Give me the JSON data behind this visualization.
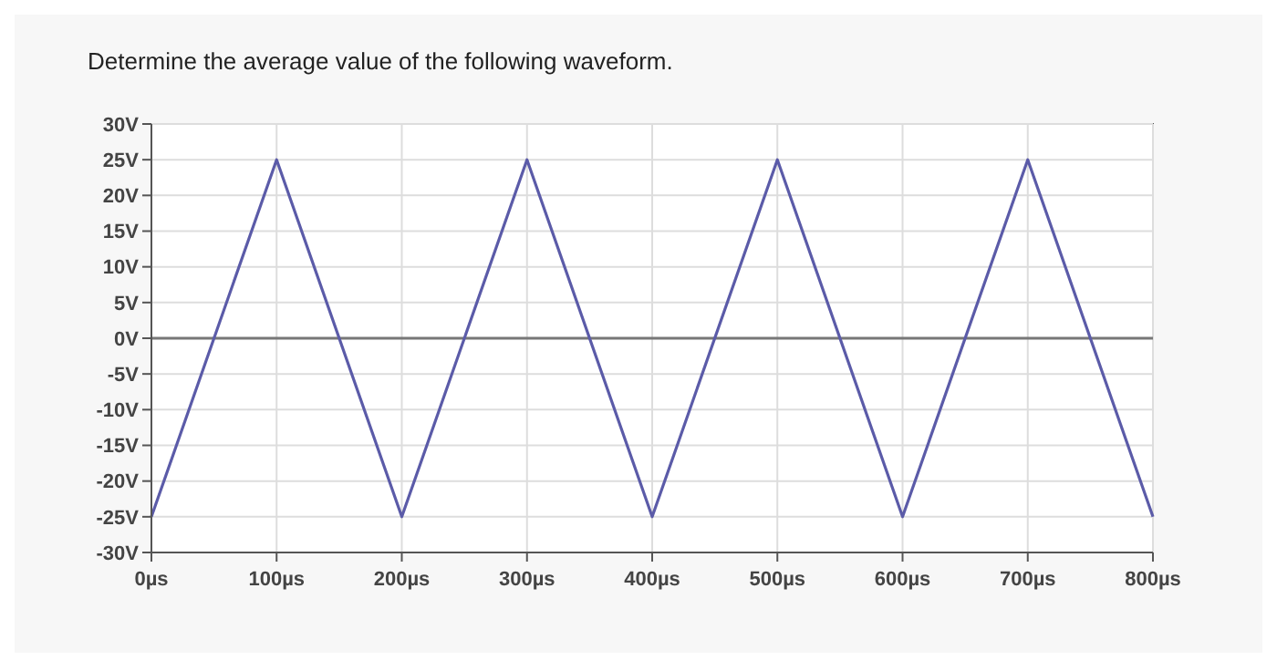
{
  "chart_data": {
    "type": "line",
    "title": "Determine the average value of the following waveform.",
    "x": [
      0,
      100,
      200,
      300,
      400,
      500,
      600,
      700,
      800
    ],
    "series": [
      {
        "color": "#5b5ba8",
        "values": [
          -25,
          25,
          -25,
          25,
          -25,
          25,
          -25,
          25,
          -25
        ]
      }
    ],
    "xlim": [
      0,
      800
    ],
    "ylim": [
      -30,
      30
    ],
    "xticks": [
      {
        "value": 0,
        "label": "0µs"
      },
      {
        "value": 100,
        "label": "100µs"
      },
      {
        "value": 200,
        "label": "200µs"
      },
      {
        "value": 300,
        "label": "300µs"
      },
      {
        "value": 400,
        "label": "400µs"
      },
      {
        "value": 500,
        "label": "500µs"
      },
      {
        "value": 600,
        "label": "600µs"
      },
      {
        "value": 700,
        "label": "700µs"
      },
      {
        "value": 800,
        "label": "800µs"
      }
    ],
    "yticks": [
      {
        "value": 30,
        "label": "30V"
      },
      {
        "value": 25,
        "label": "25V"
      },
      {
        "value": 20,
        "label": "20V"
      },
      {
        "value": 15,
        "label": "15V"
      },
      {
        "value": 10,
        "label": "10V"
      },
      {
        "value": 5,
        "label": "5V"
      },
      {
        "value": 0,
        "label": "0V"
      },
      {
        "value": -5,
        "label": "-5V"
      },
      {
        "value": -10,
        "label": "-10V"
      },
      {
        "value": -15,
        "label": "-15V"
      },
      {
        "value": -20,
        "label": "-20V"
      },
      {
        "value": -25,
        "label": "-25V"
      },
      {
        "value": -30,
        "label": "-30V"
      }
    ],
    "grid": true,
    "marker": "none",
    "line_style": "solid",
    "ref_lines": [
      {
        "axis": "y",
        "value": 0,
        "color": "#777777"
      }
    ]
  }
}
